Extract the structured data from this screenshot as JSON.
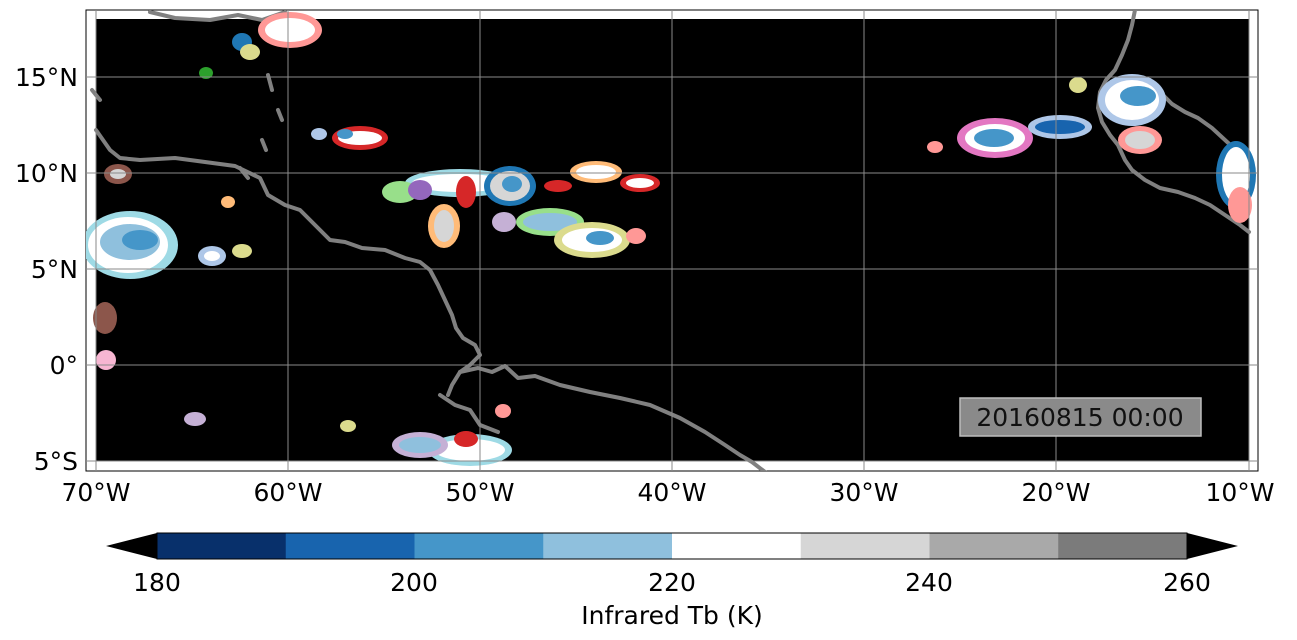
{
  "map": {
    "timestamp": "20160815 00:00",
    "lon_ticks": [
      "70°W",
      "60°W",
      "50°W",
      "40°W",
      "30°W",
      "20°W",
      "10°W"
    ],
    "lat_ticks": [
      "15°N",
      "10°N",
      "5°N",
      "0°",
      "5°S"
    ],
    "extent": {
      "lon": [
        -70,
        -10
      ],
      "lat": [
        -5,
        18
      ]
    },
    "ocean_color": "#000000",
    "coast_color": "#808080",
    "grid_color": "#8a8a8a"
  },
  "colorbar": {
    "label": "Infrared Tb (K)",
    "tick_labels": [
      "180",
      "200",
      "220",
      "240",
      "260"
    ],
    "levels": [
      180,
      190,
      200,
      210,
      220,
      230,
      240,
      250,
      260
    ],
    "colors": [
      "#08306b",
      "#1864ae",
      "#4596c9",
      "#8fc0dd",
      "#ffffff",
      "#d6d6d6",
      "#a9a9a9",
      "#7b7b7b"
    ],
    "under_color": "#000000",
    "over_color": "#000000"
  },
  "storm_outline_colors": [
    "#1f77b4",
    "#d62728",
    "#2ca02c",
    "#9467bd",
    "#8c564b",
    "#e377c2",
    "#bcbd22",
    "#17becf",
    "#ff9896",
    "#ffbb78",
    "#98df8a",
    "#c5b0d5",
    "#aec7e8",
    "#dbdb8d",
    "#9edae5",
    "#f7b6d2"
  ]
}
